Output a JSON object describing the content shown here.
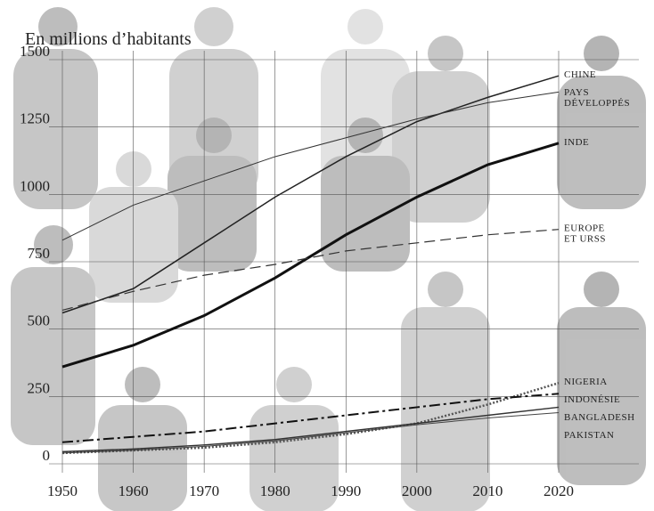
{
  "chart_data": {
    "type": "line",
    "title": "En millions d’habitants",
    "x": [
      1950,
      1960,
      1970,
      1980,
      1990,
      2000,
      2010,
      2020
    ],
    "xlim": [
      1950,
      2020
    ],
    "xticks": [
      1950,
      1960,
      1970,
      1980,
      1990,
      2000,
      2010,
      2020
    ],
    "ylim": [
      0,
      1500
    ],
    "yticks": [
      0,
      250,
      500,
      750,
      1000,
      1250,
      1500
    ],
    "grid": true,
    "series": [
      {
        "name": "CHINE",
        "color": "#222222",
        "style": "solid",
        "width": 1.5,
        "values": [
          560,
          650,
          820,
          990,
          1140,
          1270,
          1360,
          1440
        ]
      },
      {
        "name": "PAYS DÉVELOPPÉS",
        "color": "#333333",
        "style": "solid",
        "width": 1,
        "values": [
          830,
          960,
          1050,
          1140,
          1210,
          1280,
          1340,
          1380
        ]
      },
      {
        "name": "INDE",
        "color": "#111111",
        "style": "solid",
        "width": 3,
        "values": [
          360,
          440,
          550,
          690,
          850,
          990,
          1110,
          1190
        ]
      },
      {
        "name": "EUROPE ET URSS",
        "color": "#333333",
        "style": "dashed",
        "width": 1.2,
        "values": [
          570,
          640,
          700,
          740,
          790,
          820,
          850,
          870
        ]
      },
      {
        "name": "NIGERIA",
        "color": "#555555",
        "style": "dotted",
        "width": 2.5,
        "values": [
          40,
          50,
          60,
          80,
          110,
          150,
          220,
          300
        ]
      },
      {
        "name": "INDONÉSIE",
        "color": "#111111",
        "style": "dashdot",
        "width": 2,
        "values": [
          80,
          100,
          120,
          150,
          180,
          210,
          240,
          260
        ]
      },
      {
        "name": "BANGLADESH",
        "color": "#333333",
        "style": "solid",
        "width": 1.5,
        "values": [
          45,
          55,
          70,
          90,
          120,
          150,
          180,
          210
        ]
      },
      {
        "name": "PAKISTAN",
        "color": "#444444",
        "style": "solid",
        "width": 1,
        "values": [
          40,
          50,
          65,
          85,
          115,
          145,
          170,
          190
        ]
      }
    ]
  }
}
